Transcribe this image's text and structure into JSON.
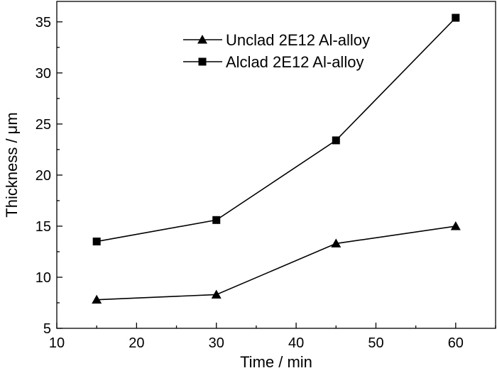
{
  "chart_data": {
    "type": "line",
    "title": "",
    "xlabel": "Time / min",
    "ylabel": "Thickness / μm",
    "xlim": [
      10,
      65
    ],
    "ylim": [
      5,
      37
    ],
    "xticks": [
      10,
      20,
      30,
      40,
      50,
      60
    ],
    "yticks": [
      5,
      10,
      15,
      20,
      25,
      30,
      35
    ],
    "grid": false,
    "legend_position": "top-center",
    "series": [
      {
        "name": "Unclad 2E12 Al-alloy",
        "marker": "triangle",
        "color": "#000000",
        "x": [
          15,
          30,
          45,
          60
        ],
        "y": [
          7.8,
          8.3,
          13.3,
          15.0
        ]
      },
      {
        "name": "Alclad 2E12 Al-alloy",
        "marker": "square",
        "color": "#000000",
        "x": [
          15,
          30,
          45,
          60
        ],
        "y": [
          13.5,
          15.6,
          23.4,
          35.4
        ]
      }
    ]
  }
}
